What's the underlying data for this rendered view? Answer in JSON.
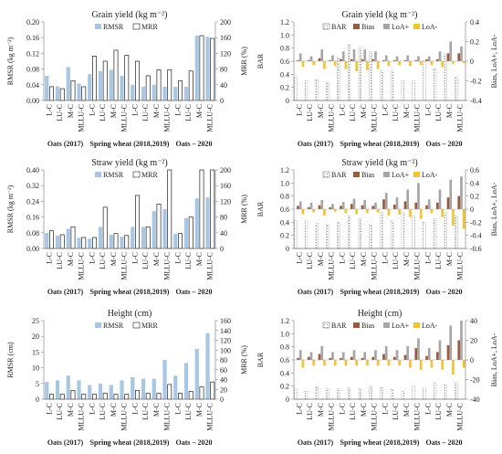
{
  "chart_data": [
    {
      "type": "bar",
      "title": "Grain yield (kg m⁻²)",
      "ylabel": "RMSR (kg m⁻²)",
      "y2label": "MRR (%)",
      "ylim": [
        0,
        0.2
      ],
      "y2lim": [
        0,
        200
      ],
      "yticks": [
        "0.00",
        "0.04",
        "0.08",
        "0.12",
        "0.16",
        "0.20"
      ],
      "y2ticks": [
        "0",
        "40",
        "80",
        "120",
        "160",
        "200"
      ],
      "categories": [
        "L-C",
        "LU-C",
        "M-C",
        "MLLU-C",
        "L-C",
        "LU-C",
        "M-C",
        "MLLU-C",
        "L-C",
        "LU-C",
        "M-C",
        "MLLU-C",
        "L-C",
        "LU-C",
        "M-C",
        "MLLU-C"
      ],
      "group_labels": [
        "Oats (2017)",
        "Spring wheat (2018,2019)",
        "Oats – 2020"
      ],
      "legend": "top-center",
      "series": [
        {
          "name": "RMSR",
          "axis": "left",
          "style": "filled",
          "values": [
            0.063,
            0.036,
            0.085,
            0.043,
            0.067,
            0.075,
            0.078,
            0.063,
            0.04,
            0.035,
            0.04,
            0.035,
            0.035,
            0.035,
            0.165,
            0.162
          ]
        },
        {
          "name": "MRR",
          "axis": "right",
          "style": "hollow",
          "values": [
            35,
            30,
            50,
            35,
            113,
            100,
            128,
            115,
            100,
            63,
            78,
            78,
            50,
            75,
            165,
            158
          ]
        }
      ]
    },
    {
      "type": "bar",
      "title": "Grain yield (kg m⁻²)",
      "ylabel": "BAR",
      "y2label": "Bias, LoA+, LoA-",
      "ylim": [
        0,
        1.2
      ],
      "y2lim": [
        -0.4,
        0.4
      ],
      "yticks": [
        "0",
        "0.2",
        "0.4",
        "0.6",
        "0.8",
        "1.0",
        "1.2"
      ],
      "y2ticks": [
        "-0.4",
        "-0.2",
        "0",
        "0.2",
        "0.4"
      ],
      "categories": [
        "L-C",
        "LU-C",
        "M-C",
        "MLLU-C",
        "L-C",
        "LU-C",
        "M-C",
        "MLLU-C",
        "L-C",
        "LU-C",
        "M-C",
        "MLLU-C",
        "L-C",
        "LU-C",
        "M-C",
        "MLLU-C"
      ],
      "group_labels": [
        "Oats (2017)",
        "Spring wheat (2018,2019)",
        "Oats – 2020"
      ],
      "legend": "top-center",
      "series": [
        {
          "name": "BAR",
          "axis": "left",
          "style": "dotted",
          "values": [
            0.35,
            0.3,
            0.32,
            0.28,
            0.65,
            0.85,
            0.8,
            0.75,
            0.45,
            0.45,
            0.3,
            0.3,
            0.6,
            0.48,
            0.7,
            0.35
          ]
        },
        {
          "name": "Bias",
          "axis": "right",
          "style": "brown",
          "values": [
            0.01,
            0.01,
            0.03,
            0.01,
            0.02,
            0.02,
            0.02,
            0.02,
            0.01,
            0.01,
            0.01,
            0.01,
            0.02,
            0.02,
            0.08,
            0.08
          ]
        },
        {
          "name": "LoA+",
          "axis": "right",
          "style": "gray",
          "values": [
            0.08,
            0.05,
            0.12,
            0.06,
            0.1,
            0.12,
            0.12,
            0.1,
            0.06,
            0.05,
            0.06,
            0.05,
            0.05,
            0.1,
            0.2,
            0.15
          ]
        },
        {
          "name": "LoA-",
          "axis": "right",
          "style": "yellow",
          "values": [
            -0.06,
            -0.04,
            -0.08,
            -0.05,
            -0.08,
            -0.1,
            -0.09,
            -0.08,
            -0.05,
            -0.04,
            -0.05,
            -0.04,
            -0.04,
            -0.06,
            -0.03,
            -0.02
          ]
        }
      ]
    },
    {
      "type": "bar",
      "title": "Straw yield (kg m⁻²)",
      "ylabel": "RMSR (kg m⁻²)",
      "y2label": "MRR (%)",
      "ylim": [
        0,
        0.4
      ],
      "y2lim": [
        0,
        200
      ],
      "yticks": [
        "0.00",
        "0.08",
        "0.16",
        "0.24",
        "0.32",
        "0.40"
      ],
      "y2ticks": [
        "0",
        "40",
        "80",
        "120",
        "160",
        "200"
      ],
      "categories": [
        "L-C",
        "LU-C",
        "M-C",
        "MLLU-C",
        "L-C",
        "LU-C",
        "M-C",
        "MLLU-C",
        "L-C",
        "LU-C",
        "M-C",
        "MLLU-C",
        "L-C",
        "LU-C",
        "M-C",
        "MLLU-C"
      ],
      "group_labels": [
        "Oats (2017)",
        "Spring wheat (2018,2019)",
        "Oats – 2020"
      ],
      "legend": "top-center",
      "series": [
        {
          "name": "RMSR",
          "axis": "left",
          "style": "filled",
          "values": [
            0.08,
            0.065,
            0.1,
            0.055,
            0.05,
            0.11,
            0.07,
            0.06,
            0.11,
            0.11,
            0.19,
            0.2,
            0.075,
            0.155,
            0.255,
            0.26
          ]
        },
        {
          "name": "MRR",
          "axis": "right",
          "style": "hollow",
          "values": [
            45,
            35,
            55,
            28,
            28,
            105,
            38,
            33,
            135,
            55,
            113,
            200,
            38,
            80,
            200,
            200
          ]
        }
      ]
    },
    {
      "type": "bar",
      "title": "Straw yield (kg m⁻²)",
      "ylabel": "BAR",
      "y2label": "Bias, LoA+, LoA-",
      "ylim": [
        0,
        1.2
      ],
      "y2lim": [
        -0.6,
        0.6
      ],
      "yticks": [
        "0",
        "0.2",
        "0.4",
        "0.6",
        "0.8",
        "1.0",
        "1.2"
      ],
      "y2ticks": [
        "-0.6",
        "-0.4",
        "-0.2",
        "0",
        "0.2",
        "0.4",
        "0.6"
      ],
      "categories": [
        "L-C",
        "LU-C",
        "M-C",
        "MLLU-C",
        "L-C",
        "LU-C",
        "M-C",
        "MLLU-C",
        "L-C",
        "LU-C",
        "M-C",
        "MLLU-C",
        "L-C",
        "LU-C",
        "M-C",
        "MLLU-C"
      ],
      "group_labels": [
        "Oats (2017)",
        "Spring wheat (2018,2019)",
        "Oats – 2020"
      ],
      "legend": "top-center",
      "series": [
        {
          "name": "BAR",
          "axis": "left",
          "style": "dotted",
          "values": [
            0.43,
            0.42,
            0.38,
            0.36,
            0.4,
            0.5,
            0.45,
            0.36,
            0.55,
            0.42,
            0.55,
            0.5,
            0.4,
            0.45,
            0.55,
            0.5
          ]
        },
        {
          "name": "Bias",
          "axis": "right",
          "style": "brown",
          "values": [
            0.05,
            0.03,
            0.06,
            0.03,
            0.05,
            0.08,
            0.06,
            0.05,
            0.15,
            0.07,
            0.12,
            0.1,
            0.06,
            0.1,
            0.18,
            0.2
          ]
        },
        {
          "name": "LoA+",
          "axis": "right",
          "style": "gray",
          "values": [
            0.12,
            0.1,
            0.14,
            0.08,
            0.11,
            0.16,
            0.14,
            0.1,
            0.25,
            0.18,
            0.3,
            0.4,
            0.15,
            0.3,
            0.45,
            0.5
          ]
        },
        {
          "name": "LoA-",
          "axis": "right",
          "style": "yellow",
          "values": [
            -0.08,
            -0.05,
            -0.1,
            -0.04,
            -0.06,
            -0.08,
            -0.06,
            -0.05,
            -0.1,
            -0.08,
            -0.12,
            -0.15,
            -0.06,
            -0.12,
            -0.25,
            -0.3
          ]
        }
      ]
    },
    {
      "type": "bar",
      "title": "Height (cm)",
      "ylabel": "RMSR (cm)",
      "y2label": "MRR (%)",
      "ylim": [
        0,
        25
      ],
      "y2lim": [
        0,
        160
      ],
      "yticks": [
        "0",
        "5",
        "10",
        "15",
        "20",
        "25"
      ],
      "y2ticks": [
        "0",
        "20",
        "40",
        "60",
        "80",
        "100",
        "120",
        "140",
        "160"
      ],
      "categories": [
        "L-C",
        "LU-C",
        "M-C",
        "MLLU-C",
        "L-C",
        "LU-C",
        "M-C",
        "MLLU-C",
        "L-C",
        "LU-C",
        "M-C",
        "MLLU-C",
        "L-C",
        "LU-C",
        "M-C",
        "MLLU-C"
      ],
      "group_labels": [
        "Oats (2017)",
        "Spring wheat (2018,2019)",
        "Oats – 2020"
      ],
      "legend": "top-center",
      "series": [
        {
          "name": "RMSR",
          "axis": "left",
          "style": "filled",
          "values": [
            5.5,
            6.0,
            7.5,
            6.0,
            4.5,
            5.0,
            4.5,
            6.0,
            7.0,
            6.5,
            6.5,
            12.5,
            7.5,
            11.5,
            16.0,
            21.0
          ]
        },
        {
          "name": "MRR",
          "axis": "right",
          "style": "hollow",
          "values": [
            10,
            10,
            18,
            10,
            10,
            12,
            10,
            10,
            18,
            12,
            12,
            30,
            12,
            16,
            25,
            35
          ]
        }
      ]
    },
    {
      "type": "bar",
      "title": "Height (cm)",
      "ylabel": "BAR",
      "y2label": "Bias, LoA+, LoA-",
      "ylim": [
        0,
        1.2
      ],
      "y2lim": [
        -40,
        40
      ],
      "yticks": [
        "0",
        "0.2",
        "0.4",
        "0.6",
        "0.8",
        "1.0",
        "1.2"
      ],
      "y2ticks": [
        "-40",
        "-20",
        "0",
        "20",
        "40"
      ],
      "categories": [
        "L-C",
        "LU-C",
        "M-C",
        "MLLU-C",
        "L-C",
        "LU-C",
        "M-C",
        "MLLU-C",
        "L-C",
        "LU-C",
        "M-C",
        "MLLU-C",
        "L-C",
        "LU-C",
        "M-C",
        "MLLU-C"
      ],
      "group_labels": [
        "Oats (2017)",
        "Spring wheat (2018,2019)",
        "Oats – 2020"
      ],
      "legend": "top-center",
      "series": [
        {
          "name": "BAR",
          "axis": "left",
          "style": "dotted",
          "values": [
            0.16,
            0.12,
            0.19,
            0.16,
            0.16,
            0.17,
            0.16,
            0.2,
            0.18,
            0.15,
            0.12,
            0.2,
            0.17,
            0.25,
            0.22,
            0.25
          ]
        },
        {
          "name": "Bias",
          "axis": "right",
          "style": "brown",
          "values": [
            2,
            3,
            6,
            2,
            2,
            3,
            2,
            3,
            6,
            3,
            5,
            12,
            4,
            8,
            15,
            20
          ]
        },
        {
          "name": "LoA+",
          "axis": "right",
          "style": "gray",
          "values": [
            10,
            8,
            14,
            8,
            8,
            10,
            8,
            10,
            14,
            10,
            14,
            22,
            12,
            20,
            35,
            40
          ]
        },
        {
          "name": "LoA-",
          "axis": "right",
          "style": "yellow",
          "values": [
            -8,
            -6,
            -6,
            -6,
            -6,
            -6,
            -6,
            -6,
            -6,
            -6,
            -8,
            -10,
            -8,
            -10,
            -15,
            -8
          ]
        }
      ]
    }
  ]
}
